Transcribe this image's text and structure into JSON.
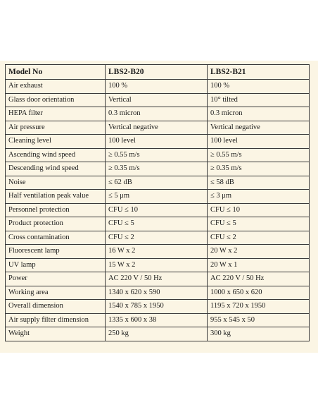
{
  "table": {
    "headers": [
      "Model No",
      "LBS2-B20",
      "LBS2-B21"
    ],
    "rows": [
      [
        "Air exhaust",
        "100 %",
        "100 %"
      ],
      [
        "Glass door orientation",
        "Vertical",
        "10° tilted"
      ],
      [
        "HEPA filter",
        "0.3 micron",
        "0.3 micron"
      ],
      [
        "Air pressure",
        "Vertical negative",
        "Vertical negative"
      ],
      [
        "Cleaning level",
        "100 level",
        "100 level"
      ],
      [
        "Ascending wind speed",
        "≥ 0.55 m/s",
        "≥ 0.55 m/s"
      ],
      [
        "Descending wind speed",
        "≥ 0.35 m/s",
        "≥ 0.35 m/s"
      ],
      [
        "Noise",
        "≤ 62 dB",
        "≤ 58 dB"
      ],
      [
        "Half ventilation peak value",
        "≤ 5 μm",
        "≤ 3 μm"
      ],
      [
        "Personnel protection",
        "CFU ≤ 10",
        "CFU ≤ 10"
      ],
      [
        "Product protection",
        "CFU ≤ 5",
        "CFU ≤ 5"
      ],
      [
        "Cross contamination",
        "CFU ≤ 2",
        "CFU ≤ 2"
      ],
      [
        "Fluorescent lamp",
        "16 W x 2",
        "20 W x 2"
      ],
      [
        "UV lamp",
        "15 W x 2",
        "20 W x 1"
      ],
      [
        "Power",
        "AC 220 V / 50 Hz",
        "AC 220 V / 50 Hz"
      ],
      [
        "Working area",
        "1340 x 620 x 590",
        "1000 x 650 x 620"
      ],
      [
        "Overall dimension",
        "1540 x 785 x 1950",
        "1195 x 720 x 1950"
      ],
      [
        "Air supply filter dimension",
        "1335 x 600 x 38",
        "955 x 545 x 50"
      ],
      [
        "Weight",
        "250 kg",
        "300 kg"
      ]
    ]
  }
}
